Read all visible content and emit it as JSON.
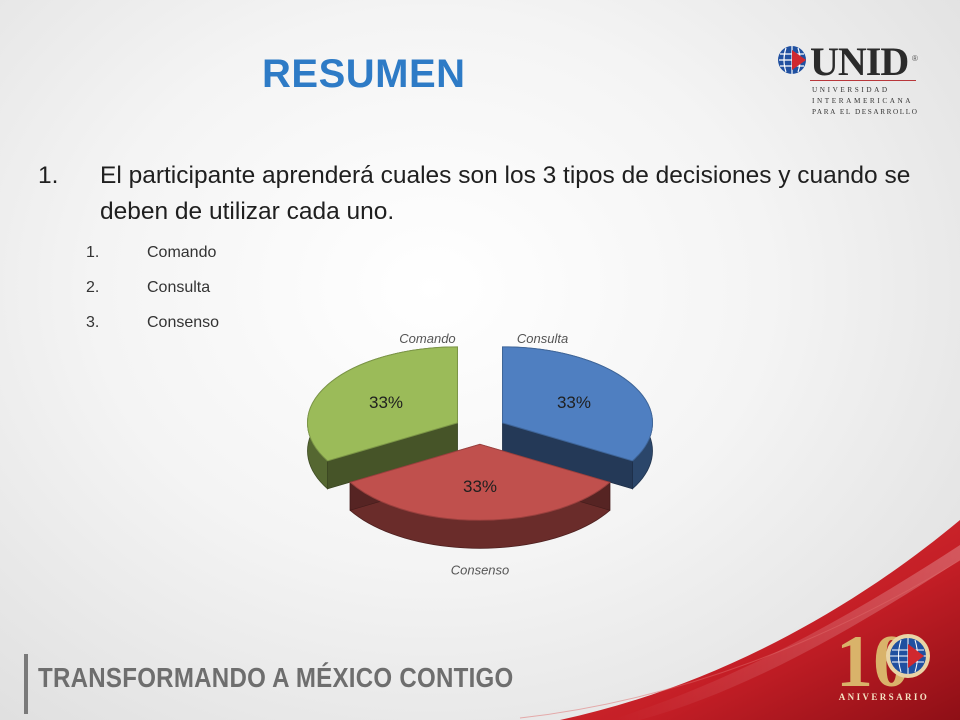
{
  "slide": {
    "title": "RESUMEN",
    "logo": {
      "word": "UNID",
      "reg": "®",
      "line1": "UNIVERSIDAD",
      "line2": "INTERAMERICANA",
      "line3": "PARA EL DESARROLLO"
    },
    "main_item": {
      "number": "1.",
      "text": "El participante aprenderá cuales son los 3 tipos de decisiones y cuando se deben de utilizar cada uno."
    },
    "sub_items": [
      {
        "number": "1.",
        "label": "Comando"
      },
      {
        "number": "2.",
        "label": "Consulta"
      },
      {
        "number": "3.",
        "label": "Consenso"
      }
    ],
    "footer": {
      "tagline": "TRANSFORMANDO A MÉXICO CONTIGO",
      "anniversary_number": "10",
      "anniversary_label": "ANIVERSARIO"
    },
    "colors": {
      "title": "#2e7bc6",
      "brand_red": "#c8202a"
    }
  },
  "chart_data": {
    "type": "pie",
    "title": "",
    "categories": [
      "Consulta",
      "Consenso",
      "Comando"
    ],
    "values": [
      33,
      33,
      33
    ],
    "data_labels": [
      "33%",
      "33%",
      "33%"
    ],
    "colors": [
      "#4f7fc1",
      "#c0504d",
      "#9bbb59"
    ],
    "style": "3d exploded pie"
  }
}
